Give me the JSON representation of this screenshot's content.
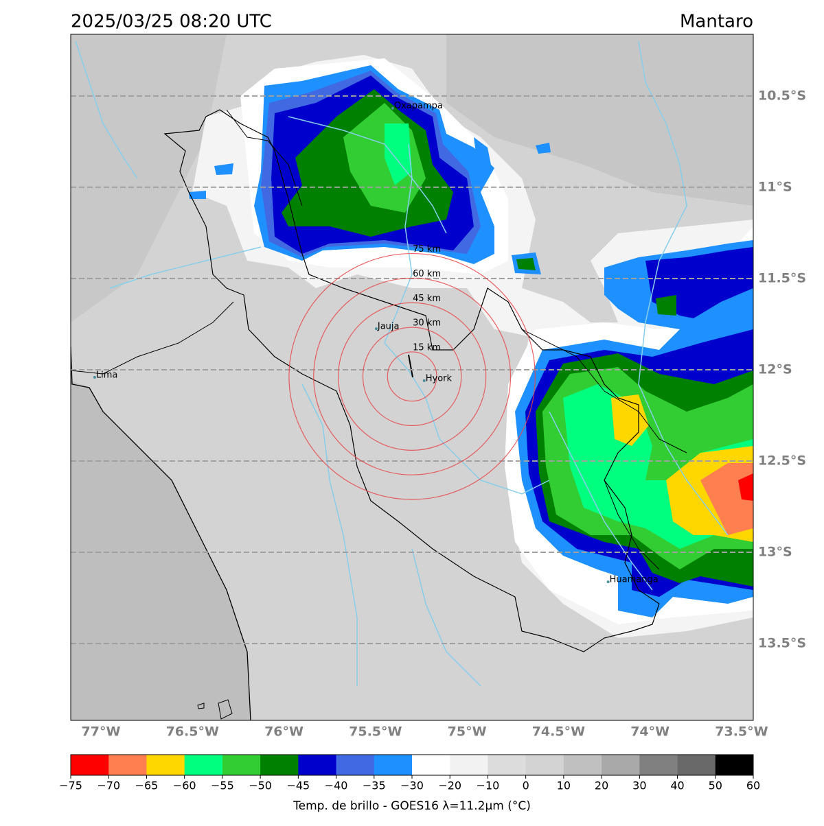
{
  "header": {
    "title": "2025/03/25 08:20 UTC",
    "region": "Mantaro"
  },
  "map": {
    "xlim": [
      -77.165,
      -73.436
    ],
    "ylim": [
      -13.921,
      -10.162
    ],
    "xticks": [
      {
        "value": -77,
        "label": "77°W"
      },
      {
        "value": -76.5,
        "label": "76.5°W"
      },
      {
        "value": -76,
        "label": "76°W"
      },
      {
        "value": -75.5,
        "label": "75.5°W"
      },
      {
        "value": -75,
        "label": "75°W"
      },
      {
        "value": -74.5,
        "label": "74.5°W"
      },
      {
        "value": -74,
        "label": "74°W"
      },
      {
        "value": -73.5,
        "label": "73.5°W"
      }
    ],
    "yticks": [
      {
        "value": -10.5,
        "label": "10.5°S"
      },
      {
        "value": -11,
        "label": "11°S"
      },
      {
        "value": -11.5,
        "label": "11.5°S"
      },
      {
        "value": -12,
        "label": "12°S"
      },
      {
        "value": -12.5,
        "label": "12.5°S"
      },
      {
        "value": -13,
        "label": "13°S"
      },
      {
        "value": -13.5,
        "label": "13.5°S"
      }
    ],
    "grid": true,
    "cities": [
      {
        "name": "Oxapampa",
        "lon": -75.406,
        "lat": -10.567
      },
      {
        "name": "Jauja",
        "lon": -75.496,
        "lat": -11.775
      },
      {
        "name": "Hyork",
        "lon": -75.234,
        "lat": -12.06
      },
      {
        "name": "Lima",
        "lon": -77.034,
        "lat": -12.041
      },
      {
        "name": "Huamanga",
        "lon": -74.229,
        "lat": -13.162
      }
    ],
    "range_rings": {
      "center_lon": -75.3,
      "center_lat": -12.037,
      "color": "#e8474a",
      "rings": [
        {
          "value": 15,
          "label": "15 km"
        },
        {
          "value": 30,
          "label": "30 km"
        },
        {
          "value": 45,
          "label": "45 km"
        },
        {
          "value": 60,
          "label": "60 km"
        },
        {
          "value": 75,
          "label": "75 km"
        }
      ]
    }
  },
  "colorbar": {
    "label": "Temp. de brillo - GOES16 λ=11.2μm (°C)",
    "bounds": [
      {
        "value": -75,
        "label": "−75"
      },
      {
        "value": -70,
        "label": "−70"
      },
      {
        "value": -65,
        "label": "−65"
      },
      {
        "value": -60,
        "label": "−60"
      },
      {
        "value": -55,
        "label": "−55"
      },
      {
        "value": -50,
        "label": "−50"
      },
      {
        "value": -45,
        "label": "−45"
      },
      {
        "value": -40,
        "label": "−40"
      },
      {
        "value": -35,
        "label": "−35"
      },
      {
        "value": -30,
        "label": "−30"
      },
      {
        "value": -20,
        "label": "−20"
      },
      {
        "value": -10,
        "label": "−10"
      },
      0,
      10,
      20,
      30,
      40,
      50,
      60
    ],
    "colors": [
      "#ff0000",
      "#ff7f50",
      "#ffd700",
      "#00ff7f",
      "#32cd32",
      "#008000",
      "#0000cd",
      "#4169e1",
      "#1e90ff",
      "#ffffff",
      "#f2f2f2",
      "#dcdcdc",
      "#d3d3d3",
      "#c0c0c0",
      "#a9a9a9",
      "#808080",
      "#696969",
      "#000000"
    ]
  }
}
